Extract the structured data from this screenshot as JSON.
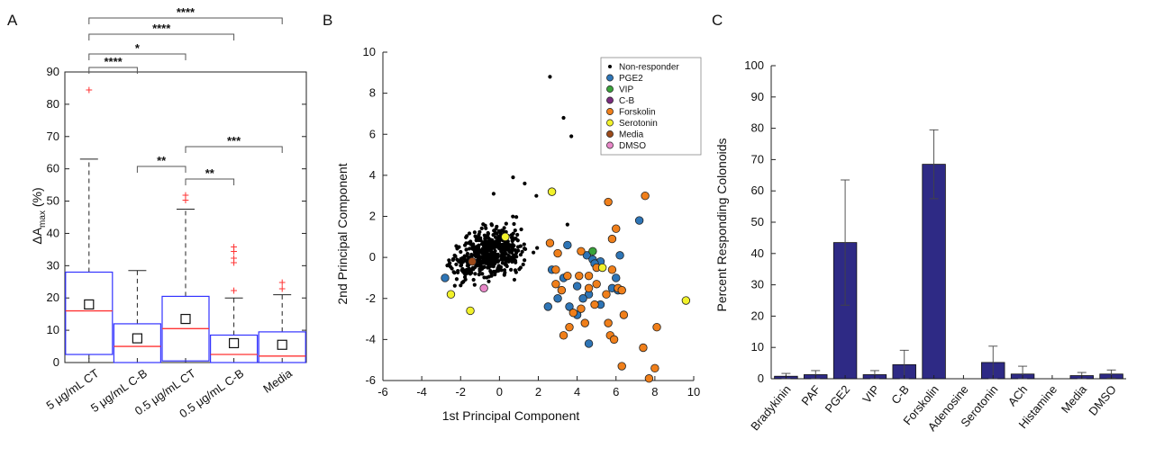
{
  "panels": {
    "a": {
      "letter": "A"
    },
    "b": {
      "letter": "B"
    },
    "c": {
      "letter": "C"
    }
  },
  "colors": {
    "box": "#3333ff",
    "median": "#ff3333",
    "outlier": "#ff3333",
    "bar_fill": "#2e2a85",
    "Non-responder": "#000000",
    "PGE2": "#2e75b6",
    "VIP": "#3aa33a",
    "C-B": "#7a2c7e",
    "Forskolin": "#f07f1a",
    "Serotonin": "#f2f22a",
    "Media": "#9c4a1a",
    "DMSO": "#e887c8"
  },
  "chart_data": [
    {
      "type": "box",
      "panel": "A",
      "ylabel_main": "ΔA",
      "ylabel_sub": "max",
      "ylabel_tail": " (%)",
      "ylim": [
        0,
        90
      ],
      "yticks": [
        "0",
        "10",
        "20",
        "30",
        "40",
        "50",
        "60",
        "70",
        "80",
        "90"
      ],
      "categories": [
        "5 μg/mL CT",
        "5 μg/mL C-B",
        "0.5 μg/mL CT",
        "0.5 μg/mL C-B",
        "Media"
      ],
      "boxes": [
        {
          "q1": 2.5,
          "median": 16,
          "q3": 28,
          "lower_whisker": 0,
          "upper_whisker": 63,
          "mean": 18,
          "outliers": [
            84.5
          ]
        },
        {
          "q1": 0,
          "median": 5,
          "q3": 12,
          "lower_whisker": 0,
          "upper_whisker": 28.5,
          "mean": 7.5,
          "outliers": []
        },
        {
          "q1": 0.5,
          "median": 10.5,
          "q3": 20.5,
          "lower_whisker": 0,
          "upper_whisker": 47.5,
          "mean": 13.5,
          "outliers": [
            50.5,
            52
          ]
        },
        {
          "q1": 0,
          "median": 2.5,
          "q3": 8.5,
          "lower_whisker": 0,
          "upper_whisker": 20,
          "mean": 6,
          "outliers": [
            22.5,
            31,
            32.5,
            34.5,
            36
          ]
        },
        {
          "q1": 0,
          "median": 2,
          "q3": 9.5,
          "lower_whisker": 0,
          "upper_whisker": 21,
          "mean": 5.5,
          "outliers": [
            23,
            25
          ]
        }
      ],
      "significance": [
        {
          "from": 0,
          "to": 4,
          "label": "****",
          "level": 1
        },
        {
          "from": 0,
          "to": 3,
          "label": "****",
          "level": 2
        },
        {
          "from": 0,
          "to": 2,
          "label": "*",
          "level": 3
        },
        {
          "from": 0,
          "to": 1,
          "label": "****",
          "level": 4
        },
        {
          "from": 2,
          "to": 4,
          "label": "***",
          "level": 5
        },
        {
          "from": 1,
          "to": 2,
          "label": "**",
          "level": 6
        },
        {
          "from": 2,
          "to": 3,
          "label": "**",
          "level": 7
        }
      ]
    },
    {
      "type": "scatter",
      "panel": "B",
      "xlabel": "1st Principal Component",
      "ylabel": "2nd Principal Component",
      "xlim": [
        -6,
        10
      ],
      "ylim": [
        -6,
        10
      ],
      "xticks": [
        "-6",
        "-4",
        "-2",
        "0",
        "2",
        "4",
        "6",
        "8",
        "10"
      ],
      "yticks": [
        "-6",
        "-4",
        "-2",
        "0",
        "2",
        "4",
        "6",
        "8",
        "10"
      ],
      "legend": [
        "Non-responder",
        "PGE2",
        "VIP",
        "C-B",
        "Forskolin",
        "Serotonin",
        "Media",
        "DMSO"
      ],
      "legend_position": "top-right",
      "non_responder_cloud": {
        "n": 520,
        "center": [
          -0.6,
          0.2
        ],
        "spread": [
          1.3,
          0.9
        ]
      },
      "non_responder_points": [
        [
          2.6,
          8.8
        ],
        [
          3.3,
          6.8
        ],
        [
          3.7,
          5.9
        ],
        [
          0.7,
          3.9
        ],
        [
          1.3,
          3.6
        ],
        [
          -0.3,
          3.1
        ],
        [
          1.9,
          3.0
        ],
        [
          3.5,
          1.6
        ]
      ],
      "series": [
        {
          "name": "PGE2",
          "points": [
            [
              -2.8,
              -1.0
            ],
            [
              2.7,
              -0.6
            ],
            [
              3.5,
              0.6
            ],
            [
              4.5,
              0.1
            ],
            [
              4.8,
              -0.1
            ],
            [
              5.2,
              -0.2
            ],
            [
              3.3,
              -1.0
            ],
            [
              4.0,
              -1.4
            ],
            [
              4.6,
              -1.8
            ],
            [
              3.6,
              -2.4
            ],
            [
              4.3,
              -2.0
            ],
            [
              5.8,
              -1.5
            ],
            [
              6.1,
              -1.6
            ],
            [
              5.2,
              -2.3
            ],
            [
              6.2,
              0.1
            ],
            [
              7.2,
              1.8
            ],
            [
              4.6,
              -4.2
            ],
            [
              2.5,
              -2.4
            ],
            [
              3.0,
              -2.0
            ],
            [
              4.9,
              -0.3
            ],
            [
              4.0,
              -2.8
            ],
            [
              6.0,
              -1.0
            ]
          ]
        },
        {
          "name": "VIP",
          "points": [
            [
              4.8,
              0.3
            ]
          ]
        },
        {
          "name": "C-B",
          "points": []
        },
        {
          "name": "Forskolin",
          "points": [
            [
              2.6,
              0.7
            ],
            [
              5.6,
              2.7
            ],
            [
              7.5,
              3.0
            ],
            [
              6.0,
              1.4
            ],
            [
              5.8,
              0.9
            ],
            [
              3.0,
              0.2
            ],
            [
              4.2,
              0.3
            ],
            [
              2.9,
              -0.6
            ],
            [
              3.5,
              -0.9
            ],
            [
              3.2,
              -1.6
            ],
            [
              4.1,
              -0.9
            ],
            [
              4.6,
              -1.5
            ],
            [
              5.0,
              -1.3
            ],
            [
              5.5,
              -1.8
            ],
            [
              5.8,
              -0.6
            ],
            [
              4.9,
              -2.3
            ],
            [
              3.8,
              -2.7
            ],
            [
              4.2,
              -2.5
            ],
            [
              3.6,
              -3.4
            ],
            [
              4.4,
              -3.2
            ],
            [
              5.6,
              -3.2
            ],
            [
              5.7,
              -3.8
            ],
            [
              6.4,
              -2.8
            ],
            [
              7.4,
              -4.4
            ],
            [
              8.1,
              -3.4
            ],
            [
              8.0,
              -5.4
            ],
            [
              7.7,
              -5.9
            ],
            [
              6.3,
              -5.3
            ],
            [
              3.3,
              -3.8
            ],
            [
              2.9,
              -1.3
            ],
            [
              5.9,
              -4.0
            ],
            [
              4.6,
              -0.9
            ],
            [
              6.1,
              -1.5
            ],
            [
              6.3,
              -1.6
            ],
            [
              5.0,
              -0.5
            ]
          ]
        },
        {
          "name": "Serotonin",
          "points": [
            [
              2.7,
              3.2
            ],
            [
              0.3,
              1.0
            ],
            [
              5.3,
              -0.5
            ],
            [
              -2.5,
              -1.8
            ],
            [
              -1.5,
              -2.6
            ],
            [
              9.6,
              -2.1
            ]
          ]
        },
        {
          "name": "Media",
          "points": [
            [
              -1.4,
              -0.2
            ]
          ]
        },
        {
          "name": "DMSO",
          "points": [
            [
              -0.8,
              -1.5
            ]
          ]
        }
      ]
    },
    {
      "type": "bar",
      "panel": "C",
      "ylabel": "Percent Responding Colonoids",
      "ylim": [
        0,
        100
      ],
      "yticks": [
        "0",
        "10",
        "20",
        "30",
        "40",
        "50",
        "60",
        "70",
        "80",
        "90",
        "100"
      ],
      "categories": [
        "Bradykinin",
        "PAF",
        "PGE2",
        "VIP",
        "C-B",
        "Forskolin",
        "Adenosine",
        "Serotonin",
        "ACh",
        "Histamine",
        "Media",
        "DMSO"
      ],
      "values": [
        0.8,
        1.3,
        43.5,
        1.3,
        4.5,
        68.5,
        0,
        5.2,
        1.5,
        0,
        1.0,
        1.5
      ],
      "errors": [
        0.9,
        1.3,
        20,
        1.3,
        4.6,
        11,
        0,
        5.2,
        2.5,
        0,
        1.0,
        1.3
      ]
    }
  ]
}
